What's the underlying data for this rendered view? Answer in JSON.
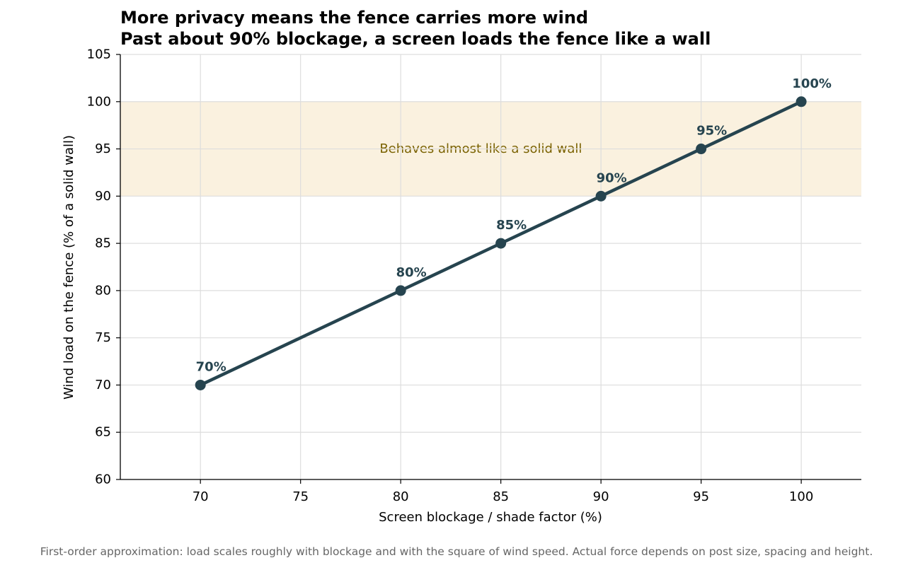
{
  "chart_data": {
    "type": "line",
    "title_line1": "More privacy means the fence carries more wind",
    "title_line2": "Past about 90% blockage, a screen loads the fence like a wall",
    "xlabel": "Screen blockage / shade factor (%)",
    "ylabel": "Wind load on the fence (% of a solid wall)",
    "xlim": [
      66,
      103
    ],
    "ylim": [
      60,
      105
    ],
    "xticks": [
      70,
      75,
      80,
      85,
      90,
      95,
      100
    ],
    "yticks": [
      60,
      65,
      70,
      75,
      80,
      85,
      90,
      95,
      100,
      105
    ],
    "grid": true,
    "series": [
      {
        "x": [
          70,
          80,
          85,
          90,
          95,
          100
        ],
        "y": [
          70,
          80,
          85,
          90,
          95,
          100
        ],
        "labels": [
          "70%",
          "80%",
          "85%",
          "90%",
          "95%",
          "100%"
        ],
        "color": "#26444f"
      }
    ],
    "band": {
      "y0": 90,
      "y1": 100,
      "label": "Behaves almost like a solid wall",
      "label_x": 84,
      "label_y": 95,
      "color": "#faf1df",
      "label_color": "#7a6200"
    },
    "footnote": "First-order approximation: load scales roughly with blockage and with the square of wind speed. Actual force depends on post size, spacing and height."
  }
}
